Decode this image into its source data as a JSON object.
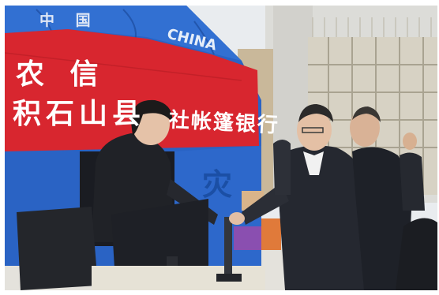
{
  "tent": {
    "top_text": "中 国",
    "china_text": "CHINA",
    "banner_line1": "农 信",
    "banner_line2": "积石山县",
    "banner_line3": "社帐篷银行",
    "side_char": "灾"
  },
  "colors": {
    "tent_blue": "#2a63c4",
    "banner_red": "#d8262f",
    "sky": "#eef0f2"
  }
}
